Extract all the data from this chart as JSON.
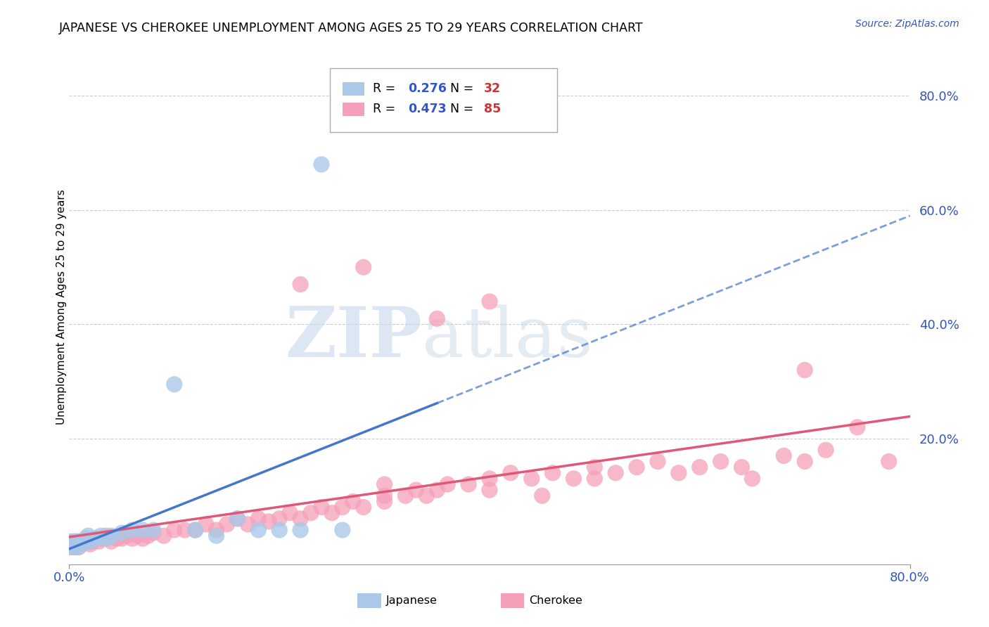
{
  "title": "JAPANESE VS CHEROKEE UNEMPLOYMENT AMONG AGES 25 TO 29 YEARS CORRELATION CHART",
  "source_text": "Source: ZipAtlas.com",
  "ylabel": "Unemployment Among Ages 25 to 29 years",
  "xlim": [
    0.0,
    0.8
  ],
  "ylim": [
    -0.02,
    0.88
  ],
  "xtick_labels": [
    "0.0%",
    "80.0%"
  ],
  "xtick_positions": [
    0.0,
    0.8
  ],
  "ytick_labels": [
    "20.0%",
    "40.0%",
    "60.0%",
    "80.0%"
  ],
  "ytick_positions": [
    0.2,
    0.4,
    0.6,
    0.8
  ],
  "japanese_color": "#aac8e8",
  "cherokee_color": "#f5a0b8",
  "japanese_line_color": "#4477cc",
  "cherokee_line_color": "#e05878",
  "watermark_zip": "ZIP",
  "watermark_atlas": "atlas",
  "japanese_R": 0.276,
  "japanese_N": 32,
  "cherokee_R": 0.473,
  "cherokee_N": 85,
  "jap_x": [
    0.0,
    0.002,
    0.003,
    0.004,
    0.005,
    0.006,
    0.007,
    0.008,
    0.009,
    0.01,
    0.012,
    0.014,
    0.016,
    0.018,
    0.02,
    0.025,
    0.03,
    0.035,
    0.04,
    0.05,
    0.06,
    0.07,
    0.08,
    0.1,
    0.12,
    0.14,
    0.16,
    0.18,
    0.2,
    0.22,
    0.24,
    0.26
  ],
  "jap_y": [
    0.02,
    0.01,
    0.015,
    0.01,
    0.02,
    0.01,
    0.015,
    0.01,
    0.015,
    0.02,
    0.015,
    0.02,
    0.025,
    0.03,
    0.02,
    0.025,
    0.03,
    0.025,
    0.03,
    0.035,
    0.04,
    0.04,
    0.04,
    0.295,
    0.04,
    0.03,
    0.06,
    0.04,
    0.04,
    0.04,
    0.68,
    0.04
  ],
  "cher_x": [
    0.0,
    0.002,
    0.003,
    0.004,
    0.005,
    0.006,
    0.007,
    0.008,
    0.009,
    0.01,
    0.012,
    0.014,
    0.016,
    0.018,
    0.02,
    0.022,
    0.025,
    0.028,
    0.03,
    0.035,
    0.04,
    0.045,
    0.05,
    0.055,
    0.06,
    0.065,
    0.07,
    0.075,
    0.08,
    0.09,
    0.1,
    0.11,
    0.12,
    0.13,
    0.14,
    0.15,
    0.16,
    0.17,
    0.18,
    0.19,
    0.2,
    0.21,
    0.22,
    0.23,
    0.24,
    0.25,
    0.26,
    0.27,
    0.28,
    0.3,
    0.3,
    0.3,
    0.32,
    0.33,
    0.34,
    0.35,
    0.36,
    0.38,
    0.4,
    0.4,
    0.42,
    0.44,
    0.45,
    0.46,
    0.48,
    0.5,
    0.5,
    0.52,
    0.54,
    0.56,
    0.58,
    0.6,
    0.62,
    0.64,
    0.65,
    0.68,
    0.7,
    0.72,
    0.75,
    0.78,
    0.22,
    0.28,
    0.35,
    0.4,
    0.7
  ],
  "cher_y": [
    0.01,
    0.015,
    0.01,
    0.02,
    0.015,
    0.01,
    0.02,
    0.015,
    0.01,
    0.02,
    0.015,
    0.02,
    0.025,
    0.02,
    0.015,
    0.02,
    0.025,
    0.02,
    0.025,
    0.03,
    0.02,
    0.025,
    0.025,
    0.03,
    0.025,
    0.03,
    0.025,
    0.03,
    0.035,
    0.03,
    0.04,
    0.04,
    0.04,
    0.05,
    0.04,
    0.05,
    0.06,
    0.05,
    0.06,
    0.055,
    0.06,
    0.07,
    0.06,
    0.07,
    0.08,
    0.07,
    0.08,
    0.09,
    0.08,
    0.09,
    0.1,
    0.12,
    0.1,
    0.11,
    0.1,
    0.11,
    0.12,
    0.12,
    0.13,
    0.11,
    0.14,
    0.13,
    0.1,
    0.14,
    0.13,
    0.15,
    0.13,
    0.14,
    0.15,
    0.16,
    0.14,
    0.15,
    0.16,
    0.15,
    0.13,
    0.17,
    0.16,
    0.18,
    0.22,
    0.16,
    0.47,
    0.5,
    0.41,
    0.44,
    0.32
  ]
}
